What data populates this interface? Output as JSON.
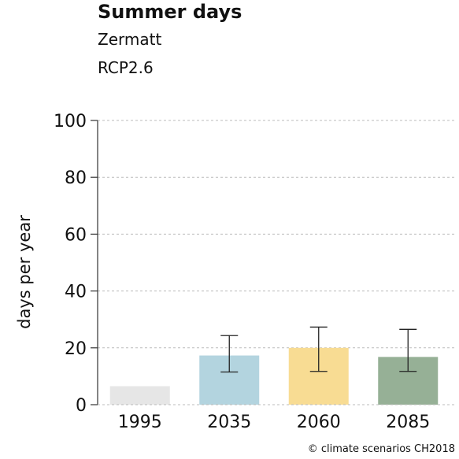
{
  "header": {
    "title": "Summer days",
    "location": "Zermatt",
    "scenario": "RCP2.6"
  },
  "credit": "© climate scenarios CH2018",
  "chart_data": {
    "type": "bar",
    "title": "Summer days",
    "ylabel": "days per year",
    "xlabel": "",
    "ylim": [
      0,
      100
    ],
    "yticks": [
      0,
      20,
      40,
      60,
      80,
      100
    ],
    "grid": true,
    "categories": [
      "1995",
      "2035",
      "2060",
      "2085"
    ],
    "values": [
      6.5,
      17.3,
      20,
      16.8
    ],
    "error_low": [
      null,
      11.5,
      11.7,
      11.7
    ],
    "error_high": [
      null,
      24.3,
      27.3,
      26.5
    ],
    "colors": [
      "#e6e6e6",
      "#b3d4df",
      "#f8dc93",
      "#96b096"
    ]
  }
}
